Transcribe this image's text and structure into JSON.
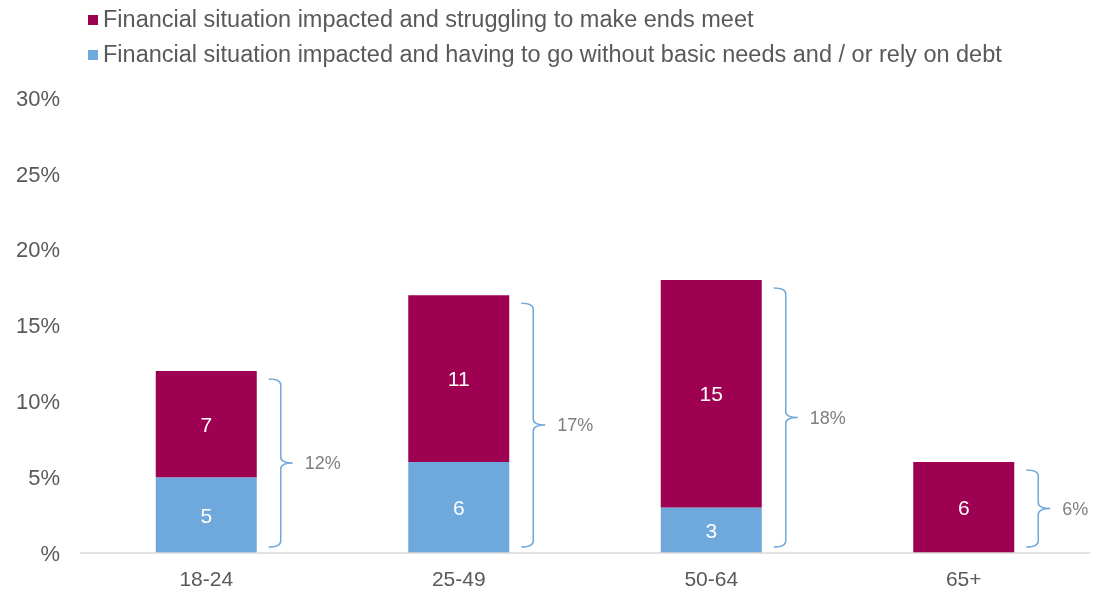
{
  "chart_data": {
    "type": "bar",
    "stacked": true,
    "categories": [
      "18-24",
      "25-49",
      "50-64",
      "65+"
    ],
    "series": [
      {
        "name": "Financial situation impacted and having to go without basic needs and / or rely on debt",
        "color": "#6fa8dc",
        "values": [
          5,
          6,
          3,
          null
        ]
      },
      {
        "name": "Financial situation impacted and struggling to make ends meet",
        "color": "#9e0052",
        "values": [
          7,
          11,
          15,
          6
        ]
      }
    ],
    "ylim": [
      0,
      30
    ],
    "yticks": [
      {
        "value": 0,
        "label": "%"
      },
      {
        "value": 5,
        "label": "5%"
      },
      {
        "value": 10,
        "label": "10%"
      },
      {
        "value": 15,
        "label": "15%"
      },
      {
        "value": 20,
        "label": "20%"
      },
      {
        "value": 25,
        "label": "25%"
      },
      {
        "value": 30,
        "label": "30%"
      }
    ],
    "data_labels": true,
    "totals": [
      "12%",
      "17%",
      "18%",
      "6%"
    ],
    "legend": "top left"
  }
}
